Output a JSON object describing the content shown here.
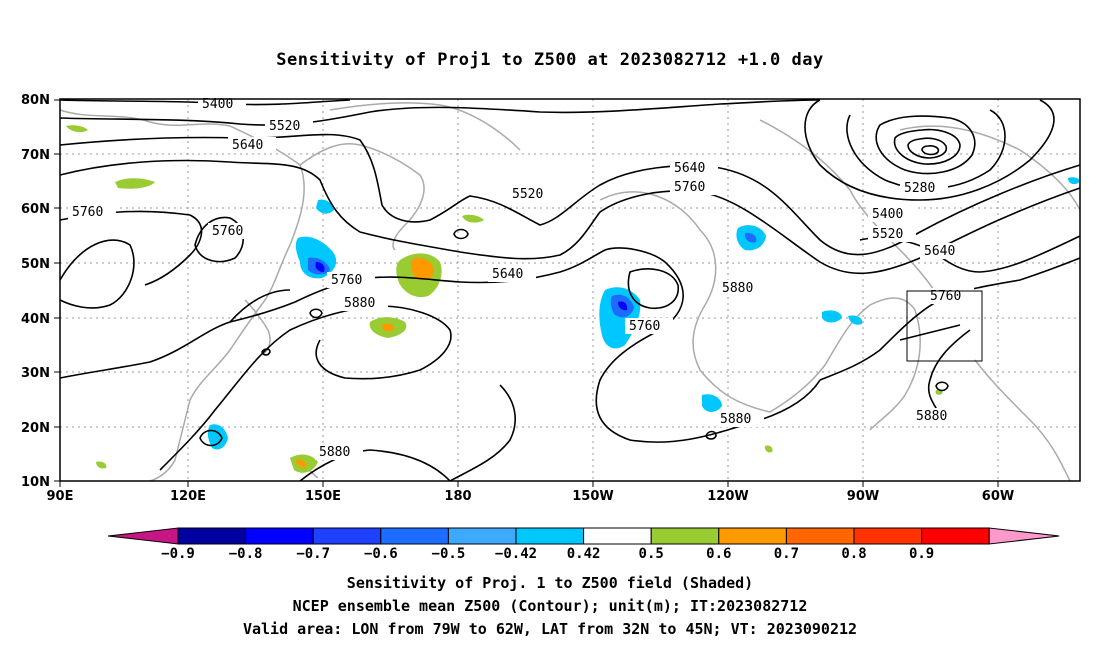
{
  "title": "Sensitivity of Proj1 to Z500 at 2023082712 +1.0 day",
  "map": {
    "lat_ticks": [
      "80N",
      "70N",
      "60N",
      "50N",
      "40N",
      "30N",
      "20N",
      "10N"
    ],
    "lon_ticks": [
      "90E",
      "120E",
      "150E",
      "180",
      "150W",
      "120W",
      "90W",
      "60W"
    ],
    "contour_labels": [
      {
        "text": "5400",
        "id": "c5400"
      },
      {
        "text": "5520",
        "id": "c5520a"
      },
      {
        "text": "5640",
        "id": "c5640a"
      },
      {
        "text": "5760",
        "id": "c5760a"
      },
      {
        "text": "5760",
        "id": "c5760b"
      },
      {
        "text": "5760",
        "id": "c5760c"
      },
      {
        "text": "5880",
        "id": "c5880a"
      },
      {
        "text": "5880",
        "id": "c5880b"
      },
      {
        "text": "5520",
        "id": "c5520b"
      },
      {
        "text": "5640",
        "id": "c5640b"
      },
      {
        "text": "5640",
        "id": "c5640c"
      },
      {
        "text": "5760",
        "id": "c5760d"
      },
      {
        "text": "5760",
        "id": "c5760e"
      },
      {
        "text": "5880",
        "id": "c5880c"
      },
      {
        "text": "5280",
        "id": "c5280"
      },
      {
        "text": "5400",
        "id": "c5400b"
      },
      {
        "text": "5520",
        "id": "c5520c"
      },
      {
        "text": "5640",
        "id": "c5640d"
      },
      {
        "text": "5760",
        "id": "c5760f"
      },
      {
        "text": "5880",
        "id": "c5880d"
      },
      {
        "text": "5880",
        "id": "c5880e"
      }
    ],
    "valid_box": {
      "lon_from": "79W",
      "lon_to": "62W",
      "lat_from": "32N",
      "lat_to": "45N"
    }
  },
  "colorbar": {
    "labels": [
      "-0.9",
      "-0.8",
      "-0.7",
      "-0.6",
      "-0.5",
      "-0.42",
      "0.42",
      "0.5",
      "0.6",
      "0.7",
      "0.8",
      "0.9"
    ],
    "colors": [
      "#c71585",
      "#0000a0",
      "#0000ff",
      "#1e40ff",
      "#1e6cff",
      "#3fa8ff",
      "#00c8ff",
      "#ffffff",
      "#99cc33",
      "#ff9900",
      "#ff6600",
      "#ff3300",
      "#ff0000",
      "#ff99cc"
    ]
  },
  "footer": {
    "line1": "Sensitivity of Proj. 1 to Z500 field (Shaded)",
    "line2": "NCEP ensemble mean Z500 (Contour); unit(m); IT:2023082712",
    "line3": "Valid area: LON from 79W to 62W, LAT from 32N to 45N; VT: 2023090212"
  }
}
